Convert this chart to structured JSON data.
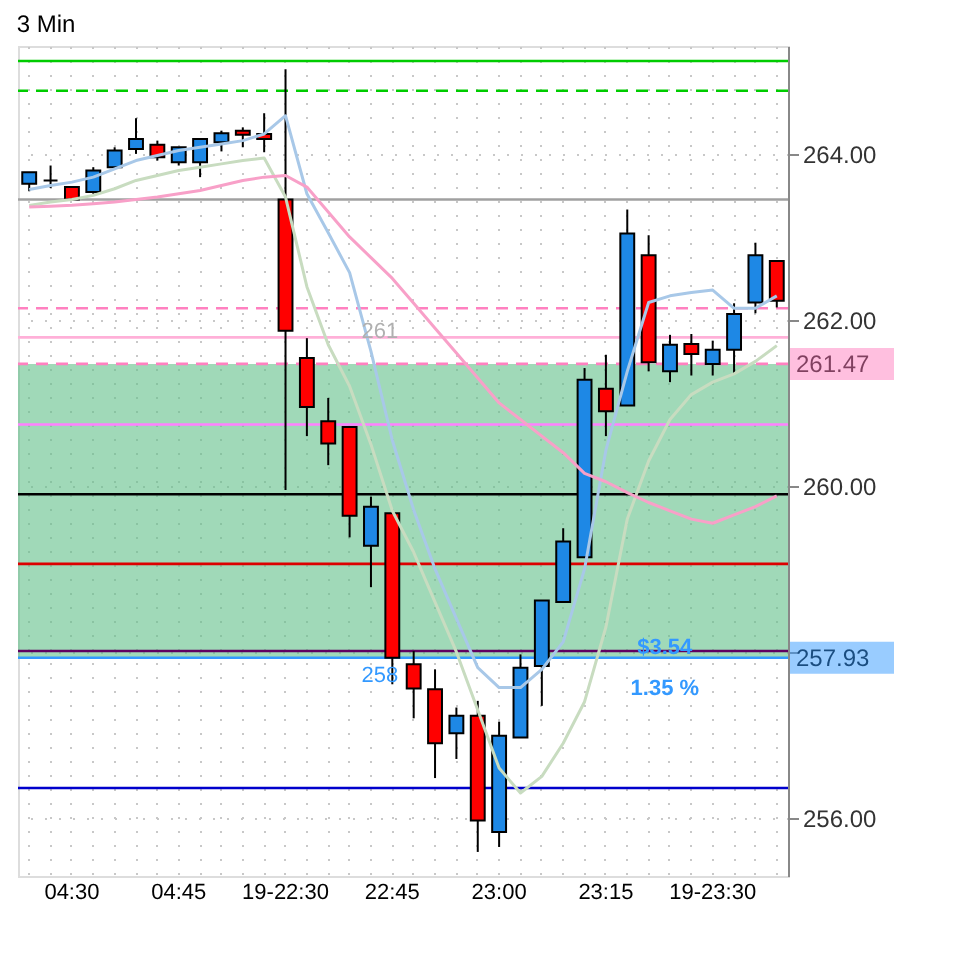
{
  "chart_data": {
    "type": "candlestick",
    "title": "3 Min",
    "categories": [
      null,
      null,
      "04:30",
      null,
      null,
      null,
      null,
      "04:45",
      null,
      null,
      null,
      null,
      "19-22:30",
      null,
      null,
      null,
      null,
      "22:45",
      null,
      null,
      null,
      null,
      "23:00",
      null,
      null,
      null,
      null,
      "23:15",
      null,
      null,
      null,
      null,
      "19-23:30",
      null,
      null,
      null
    ],
    "ohlc": [
      [
        263.64,
        263.78,
        263.55,
        263.78
      ],
      [
        263.68,
        263.86,
        263.59,
        263.68
      ],
      [
        263.6,
        263.6,
        263.45,
        263.45
      ],
      [
        263.54,
        263.84,
        263.52,
        263.8
      ],
      [
        263.84,
        264.08,
        263.84,
        264.04
      ],
      [
        264.06,
        264.43,
        264.0,
        264.18
      ],
      [
        264.11,
        264.16,
        263.92,
        263.96
      ],
      [
        263.9,
        264.08,
        263.86,
        264.08
      ],
      [
        263.9,
        264.18,
        263.72,
        264.18
      ],
      [
        264.14,
        264.28,
        264.03,
        264.25
      ],
      [
        264.28,
        264.32,
        264.08,
        264.23
      ],
      [
        264.24,
        264.49,
        264.02,
        264.18
      ],
      [
        263.45,
        265.02,
        259.95,
        261.87
      ],
      [
        261.54,
        261.78,
        260.6,
        260.95
      ],
      [
        260.78,
        261.06,
        260.25,
        260.51
      ],
      [
        260.71,
        260.71,
        259.38,
        259.64
      ],
      [
        259.28,
        259.87,
        258.78,
        259.75
      ],
      [
        259.67,
        259.67,
        257.61,
        257.93
      ],
      [
        257.85,
        258.01,
        257.2,
        257.56
      ],
      [
        257.55,
        257.79,
        256.48,
        256.9
      ],
      [
        257.02,
        257.33,
        256.71,
        257.23
      ],
      [
        257.23,
        257.41,
        255.59,
        255.97
      ],
      [
        255.83,
        257.16,
        255.65,
        256.99
      ],
      [
        256.97,
        257.97,
        256.97,
        257.81
      ],
      [
        257.83,
        258.62,
        257.35,
        258.62
      ],
      [
        258.6,
        259.49,
        258.6,
        259.33
      ],
      [
        259.14,
        261.42,
        259.14,
        261.28
      ],
      [
        261.17,
        261.58,
        260.6,
        260.9
      ],
      [
        260.97,
        263.33,
        260.97,
        263.04
      ],
      [
        262.78,
        263.02,
        261.38,
        261.49
      ],
      [
        261.38,
        261.82,
        261.25,
        261.7
      ],
      [
        261.71,
        261.83,
        261.33,
        261.59
      ],
      [
        261.47,
        261.75,
        261.33,
        261.64
      ],
      [
        261.64,
        262.2,
        261.34,
        262.07
      ],
      [
        262.21,
        262.93,
        262.08,
        262.78
      ],
      [
        262.71,
        262.71,
        262.15,
        262.23
      ]
    ],
    "colors": [
      "#1e88e5",
      "#000000",
      "#ff0000",
      "#1e88e5",
      "#1e88e5",
      "#1e88e5",
      "#ff0000",
      "#1e88e5",
      "#1e88e5",
      "#1e88e5",
      "#ff0000",
      "#ff0000",
      "#ff0000",
      "#ff0000",
      "#ff0000",
      "#ff0000",
      "#1e88e5",
      "#ff0000",
      "#ff0000",
      "#ff0000",
      "#1e88e5",
      "#ff0000",
      "#1e88e5",
      "#1e88e5",
      "#1e88e5",
      "#1e88e5",
      "#1e88e5",
      "#ff0000",
      "#1e88e5",
      "#ff0000",
      "#1e88e5",
      "#ff0000",
      "#1e88e5",
      "#1e88e5",
      "#1e88e5",
      "#ff0000"
    ],
    "series": [
      {
        "type": "line",
        "color": "#a8c8e8",
        "values": [
          263.57,
          263.62,
          263.66,
          263.72,
          263.82,
          263.92,
          263.98,
          264.04,
          264.08,
          264.12,
          264.16,
          264.24,
          264.46,
          263.52,
          263.05,
          262.57,
          261.62,
          260.55,
          259.71,
          259.0,
          258.4,
          257.81,
          257.57,
          257.57,
          257.79,
          258.12,
          259.0,
          260.43,
          261.38,
          262.21,
          262.29,
          262.33,
          262.36,
          262.14,
          262.14,
          262.29
        ]
      },
      {
        "type": "line",
        "color": "#c8dcc0",
        "values": [
          263.38,
          263.42,
          263.45,
          263.5,
          263.58,
          263.68,
          263.74,
          263.8,
          263.84,
          263.88,
          263.92,
          263.95,
          263.48,
          262.4,
          261.7,
          261.2,
          260.5,
          259.7,
          259.2,
          258.6,
          258.0,
          257.3,
          256.6,
          256.3,
          256.5,
          256.9,
          257.4,
          258.3,
          259.6,
          260.3,
          260.8,
          261.1,
          261.25,
          261.35,
          261.5,
          261.69
        ]
      },
      {
        "type": "line",
        "color": "#f8a0c8",
        "values": [
          263.36,
          263.37,
          263.38,
          263.4,
          263.42,
          263.45,
          263.48,
          263.52,
          263.56,
          263.62,
          263.68,
          263.72,
          263.74,
          263.6,
          263.3,
          263.0,
          262.75,
          262.5,
          262.2,
          261.9,
          261.6,
          261.3,
          261.0,
          260.8,
          260.6,
          260.4,
          260.15,
          260.05,
          259.92,
          259.8,
          259.7,
          259.6,
          259.55,
          259.65,
          259.75,
          259.88
        ]
      }
    ],
    "ylim": [
      255.3,
      265.3
    ],
    "yticks": [
      {
        "value": 256,
        "label": "256.00"
      },
      {
        "value": 258,
        "label": null
      },
      {
        "value": 260,
        "label": "260.00"
      },
      {
        "value": 262,
        "label": "262.00"
      },
      {
        "value": 264,
        "label": "264.00"
      }
    ],
    "ref_lines": [
      {
        "axis": "y",
        "value": 265.12,
        "color": "#00cc00",
        "line_style": "solid"
      },
      {
        "axis": "y",
        "value": 264.76,
        "color": "#00cc00",
        "line_style": "dashed"
      },
      {
        "axis": "y",
        "value": 263.45,
        "color": "#a0a0a0",
        "line_style": "solid"
      },
      {
        "axis": "y",
        "value": 262.14,
        "color": "#ff80c0",
        "line_style": "dashed"
      },
      {
        "axis": "y",
        "value": 261.79,
        "color": "#ffb0d8",
        "line_style": "solid"
      },
      {
        "axis": "y",
        "value": 261.47,
        "color": "#ff80c0",
        "line_style": "dashed",
        "label": "261.47"
      },
      {
        "axis": "y",
        "value": 260.74,
        "color": "#ff80ff",
        "line_style": "solid"
      },
      {
        "axis": "y",
        "value": 259.9,
        "color": "#000000",
        "line_style": "solid"
      },
      {
        "axis": "y",
        "value": 259.06,
        "color": "#dd0000",
        "line_style": "solid"
      },
      {
        "axis": "y",
        "value": 258.01,
        "color": "#600060",
        "line_style": "solid"
      },
      {
        "axis": "y",
        "value": 257.93,
        "color": "#3399ff",
        "line_style": "solid",
        "label": "257.93"
      },
      {
        "axis": "y",
        "value": 256.36,
        "color": "#0000cc",
        "line_style": "solid"
      }
    ],
    "bands": [
      {
        "axis": "y",
        "from": 257.93,
        "to": 261.47,
        "color": "#60c088"
      }
    ],
    "annotations": [
      "261",
      {
        "text": "258",
        "y": 257.93
      },
      "$3.54",
      "1.35 %"
    ],
    "grid": true
  }
}
